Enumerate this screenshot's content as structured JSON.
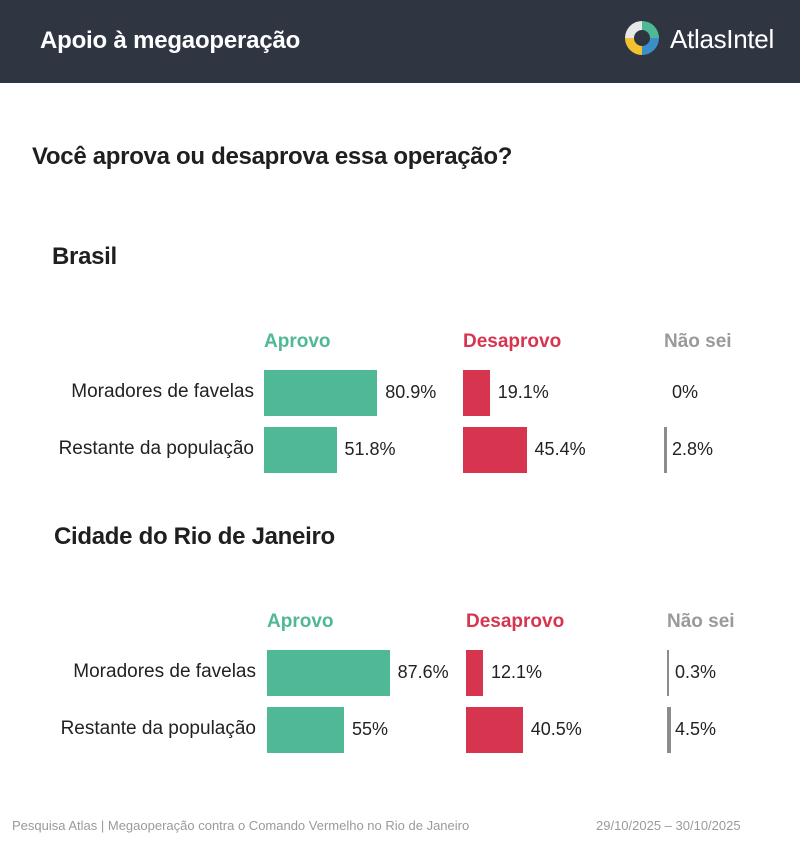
{
  "header": {
    "title": "Apoio à megaoperação",
    "brand": "AtlasIntel",
    "logo_icon": "atlasintel-logo"
  },
  "question": "Você aprova ou desaprova essa operação?",
  "columns": {
    "aprovo": "Aprovo",
    "desaprovo": "Desaprovo",
    "nao_sei": "Não sei"
  },
  "colors": {
    "aprovo": "#4fb897",
    "desaprovo": "#d6344f",
    "nao_sei": "#8c8c8c",
    "header_bg": "#2f3642"
  },
  "chart_data": [
    {
      "type": "bar",
      "title": "Brasil",
      "categories": [
        "Moradores de favelas",
        "Restante da população"
      ],
      "series": [
        {
          "name": "Aprovo",
          "values": [
            80.9,
            51.8
          ],
          "labels": [
            "80.9%",
            "51.8%"
          ]
        },
        {
          "name": "Desaprovo",
          "values": [
            19.1,
            45.4
          ],
          "labels": [
            "19.1%",
            "45.4%"
          ]
        },
        {
          "name": "Não sei",
          "values": [
            0,
            2.8
          ],
          "labels": [
            "0%",
            "2.8%"
          ]
        }
      ]
    },
    {
      "type": "bar",
      "title": "Cidade do Rio de Janeiro",
      "categories": [
        "Moradores de favelas",
        "Restante da população"
      ],
      "series": [
        {
          "name": "Aprovo",
          "values": [
            87.6,
            55
          ],
          "labels": [
            "87.6%",
            "55%"
          ]
        },
        {
          "name": "Desaprovo",
          "values": [
            12.1,
            40.5
          ],
          "labels": [
            "12.1%",
            "40.5%"
          ]
        },
        {
          "name": "Não sei",
          "values": [
            0.3,
            4.5
          ],
          "labels": [
            "0.3%",
            "4.5%"
          ]
        }
      ]
    }
  ],
  "footer": {
    "source": "Pesquisa Atlas | Megaoperação contra o Comando Vermelho no Rio de Janeiro",
    "dates": "29/10/2025 – 30/10/2025"
  }
}
